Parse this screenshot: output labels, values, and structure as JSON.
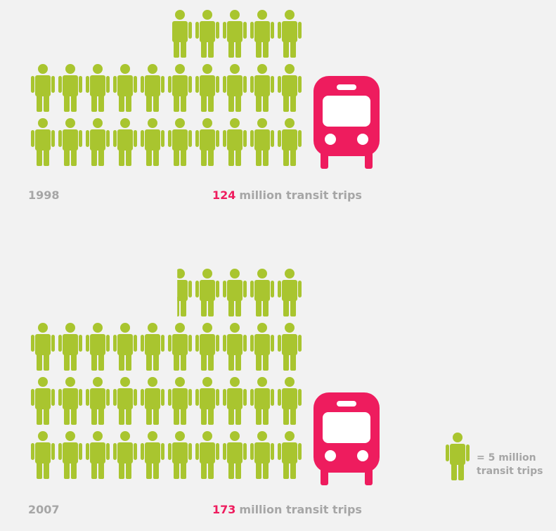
{
  "chart_data": {
    "type": "pictogram",
    "categories": [
      "1998",
      "2007"
    ],
    "values": [
      124,
      173
    ],
    "value_text": "million transit trips",
    "unit": 5,
    "legend_label_line1": "= 5 million",
    "legend_label_line2": "transit trips",
    "icon_color": "#a9c52f",
    "bus_color": "#ee1c5e",
    "label_color": "#a6a6a6"
  }
}
